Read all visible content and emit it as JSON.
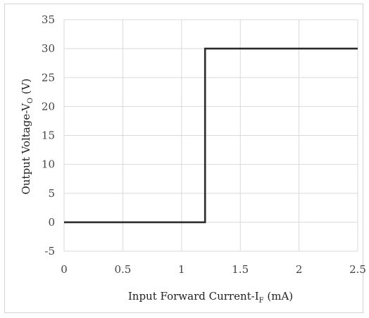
{
  "chart_data": {
    "type": "line",
    "xlabel": {
      "main": "Input Forward Current-I",
      "sub": "F",
      "unit": " (mA)"
    },
    "ylabel": {
      "main": "Output Voltage-V",
      "sub": "O",
      "unit": " (V)"
    },
    "xlim": [
      0,
      2.5
    ],
    "ylim": [
      -5,
      35
    ],
    "xticks": [
      "0",
      "0.5",
      "1",
      "1.5",
      "2",
      "2.5"
    ],
    "xtick_values": [
      0,
      0.5,
      1,
      1.5,
      2,
      2.5
    ],
    "yticks": [
      "-5",
      "0",
      "5",
      "10",
      "15",
      "20",
      "25",
      "30",
      "35"
    ],
    "ytick_values": [
      -5,
      0,
      5,
      10,
      15,
      20,
      25,
      30,
      35
    ],
    "grid": true,
    "series": [
      {
        "x": [
          0,
          1.2,
          1.2,
          2.5
        ],
        "y": [
          0,
          0,
          30,
          30
        ],
        "color": "#2b2b2b"
      }
    ]
  }
}
